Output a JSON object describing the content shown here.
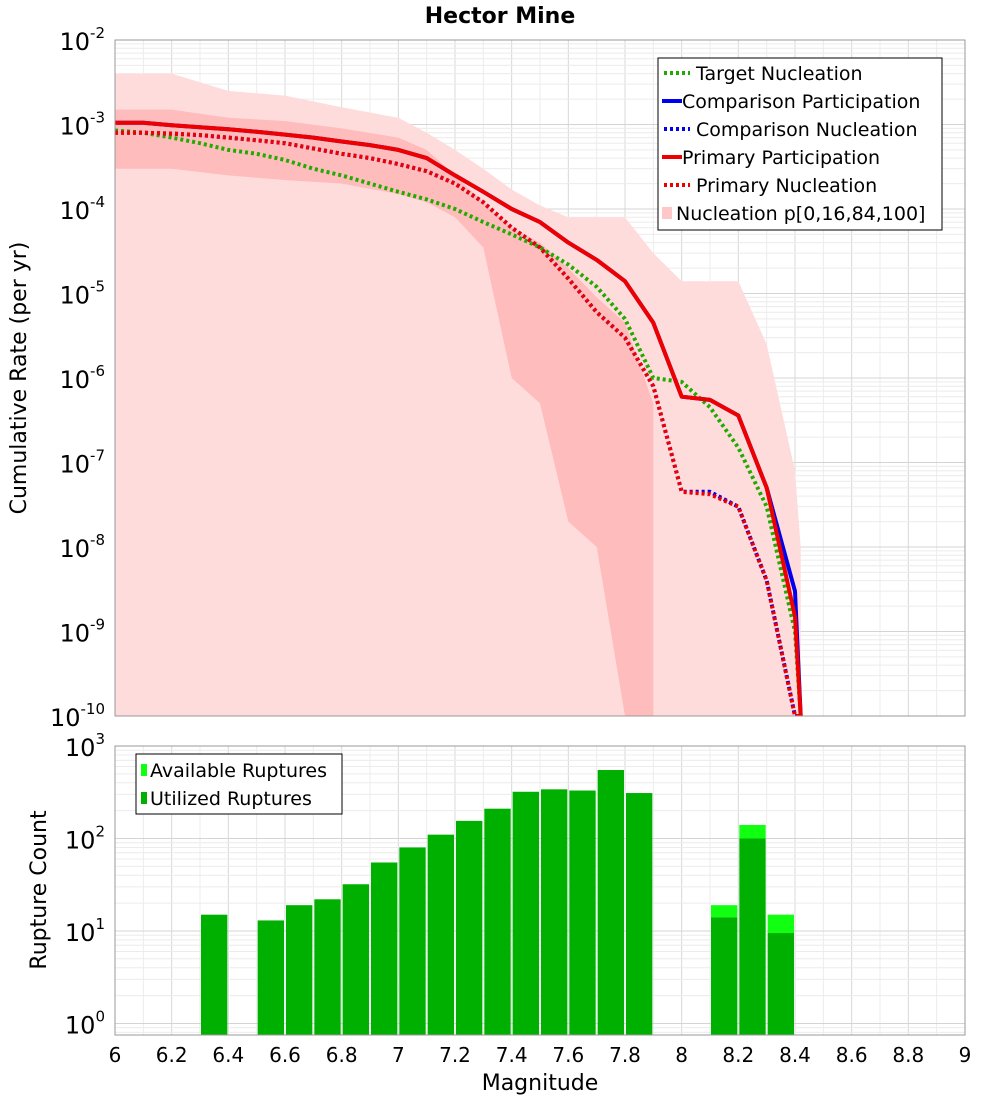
{
  "chart_data": [
    {
      "type": "line",
      "title": "Hector Mine",
      "xlabel": "",
      "ylabel": "Cumulative Rate (per yr)",
      "xlim": [
        6,
        9
      ],
      "ylim": [
        1e-10,
        0.01
      ],
      "yscale": "log",
      "ytick_labels": [
        {
          "value": 0.01,
          "base": "10",
          "exp": "-2"
        },
        {
          "value": 0.001,
          "base": "10",
          "exp": "-3"
        },
        {
          "value": 0.0001,
          "base": "10",
          "exp": "-4"
        },
        {
          "value": 1e-05,
          "base": "10",
          "exp": "-5"
        },
        {
          "value": 1e-06,
          "base": "10",
          "exp": "-6"
        },
        {
          "value": 1e-07,
          "base": "10",
          "exp": "-7"
        },
        {
          "value": 1e-08,
          "base": "10",
          "exp": "-8"
        },
        {
          "value": 1e-09,
          "base": "10",
          "exp": "-9"
        },
        {
          "value": 1e-10,
          "base": "10",
          "exp": "-10"
        }
      ],
      "bands": [
        {
          "name": "Nucleation p[0,100]",
          "color": "#ffdcdc",
          "x": [
            6.0,
            6.2,
            6.2,
            6.4,
            6.6,
            6.8,
            7.0,
            7.1,
            7.2,
            7.3,
            7.4,
            7.5,
            7.6,
            7.7,
            7.8,
            7.9,
            8.0,
            8.1,
            8.2,
            8.3,
            8.4,
            8.42
          ],
          "upper": [
            0.004,
            0.004,
            0.004,
            0.0025,
            0.0022,
            0.0016,
            0.0012,
            0.0008,
            0.0005,
            0.0003,
            0.00017,
            0.00011,
            8e-05,
            8e-05,
            8e-05,
            3e-05,
            1.4e-05,
            1.4e-05,
            1.4e-05,
            2.5e-06,
            8e-08,
            1e-08
          ],
          "lower": [
            1e-10,
            1e-10,
            1e-10,
            1e-10,
            1e-10,
            1e-10,
            1e-10,
            1e-10,
            1e-10,
            1e-10,
            1e-10,
            1e-10,
            1e-10,
            1e-10,
            1e-10,
            1e-10,
            1e-10,
            1e-10,
            1e-10,
            1e-10,
            1e-10,
            1e-10
          ]
        },
        {
          "name": "Nucleation p[16,84]",
          "color": "#ffbcbc",
          "x": [
            6.0,
            6.2,
            6.4,
            6.6,
            6.8,
            7.0,
            7.1,
            7.2,
            7.3,
            7.4,
            7.5,
            7.6,
            7.7,
            7.8,
            7.9
          ],
          "upper": [
            0.0015,
            0.0015,
            0.0012,
            0.0011,
            0.0009,
            0.0007,
            0.0005,
            0.00025,
            0.00012,
            6e-05,
            4e-05,
            2e-05,
            9e-06,
            4.5e-06,
            5e-07
          ],
          "lower": [
            0.0003,
            0.0003,
            0.00025,
            0.00022,
            0.0002,
            0.00015,
            0.00012,
            8e-05,
            3.5e-05,
            1e-06,
            5e-07,
            2e-08,
            1e-08,
            1e-10,
            1e-10
          ]
        }
      ],
      "series": [
        {
          "name": "Target Nucleation",
          "color": "#22aa00",
          "dash": true,
          "x": [
            6.0,
            6.1,
            6.2,
            6.3,
            6.4,
            6.5,
            6.6,
            6.7,
            6.8,
            6.9,
            7.0,
            7.1,
            7.2,
            7.3,
            7.4,
            7.5,
            7.6,
            7.7,
            7.8,
            7.9,
            8.0,
            8.1,
            8.2,
            8.3,
            8.4,
            8.42
          ],
          "values": [
            0.00085,
            0.0008,
            0.0007,
            0.0006,
            0.0005,
            0.00045,
            0.00038,
            0.0003,
            0.00025,
            0.0002,
            0.00016,
            0.00013,
            0.0001,
            7e-05,
            5e-05,
            3.5e-05,
            2.2e-05,
            1.2e-05,
            5e-06,
            1e-06,
            9e-07,
            4.5e-07,
            1.5e-07,
            3e-08,
            1e-09,
            1e-10
          ]
        },
        {
          "name": "Comparison Participation",
          "color": "#0000ee",
          "dash": false,
          "x": [
            6.0,
            6.1,
            6.2,
            6.3,
            6.4,
            6.5,
            6.6,
            6.7,
            6.8,
            6.9,
            7.0,
            7.1,
            7.2,
            7.3,
            7.4,
            7.5,
            7.6,
            7.7,
            7.8,
            7.9,
            8.0,
            8.1,
            8.2,
            8.3,
            8.4,
            8.42
          ],
          "values": [
            0.00105,
            0.00105,
            0.00098,
            0.00093,
            0.00088,
            0.00082,
            0.00076,
            0.0007,
            0.00063,
            0.00057,
            0.0005,
            0.0004,
            0.00025,
            0.00016,
            0.0001,
            7e-05,
            4e-05,
            2.5e-05,
            1.4e-05,
            4.5e-06,
            6e-07,
            5.5e-07,
            3.6e-07,
            5e-08,
            3e-09,
            1e-10
          ]
        },
        {
          "name": "Comparison Nucleation",
          "color": "#0000ee",
          "dash": true,
          "x": [
            6.0,
            6.1,
            6.2,
            6.3,
            6.4,
            6.5,
            6.6,
            6.7,
            6.8,
            6.9,
            7.0,
            7.1,
            7.2,
            7.3,
            7.4,
            7.5,
            7.6,
            7.7,
            7.8,
            7.9,
            8.0,
            8.1,
            8.2,
            8.3,
            8.4,
            8.42
          ],
          "values": [
            0.0008,
            0.0008,
            0.00078,
            0.00075,
            0.0007,
            0.00065,
            0.0006,
            0.00052,
            0.00045,
            0.0004,
            0.00034,
            0.00028,
            0.0002,
            0.00012,
            6e-05,
            3.5e-05,
            1.5e-05,
            6e-06,
            3e-06,
            8e-07,
            4.5e-08,
            4.5e-08,
            3e-08,
            4e-09,
            1e-10,
            1e-10
          ]
        },
        {
          "name": "Primary Participation",
          "color": "#ee0000",
          "dash": false,
          "x": [
            6.0,
            6.1,
            6.2,
            6.3,
            6.4,
            6.5,
            6.6,
            6.7,
            6.8,
            6.9,
            7.0,
            7.1,
            7.2,
            7.3,
            7.4,
            7.5,
            7.6,
            7.7,
            7.8,
            7.9,
            8.0,
            8.1,
            8.2,
            8.3,
            8.4,
            8.42
          ],
          "values": [
            0.00105,
            0.00105,
            0.00098,
            0.00093,
            0.00088,
            0.00082,
            0.00076,
            0.0007,
            0.00063,
            0.00057,
            0.0005,
            0.0004,
            0.00025,
            0.00016,
            0.0001,
            7e-05,
            4e-05,
            2.5e-05,
            1.4e-05,
            4.5e-06,
            6e-07,
            5.5e-07,
            3.6e-07,
            5e-08,
            1.5e-09,
            1e-10
          ]
        },
        {
          "name": "Primary Nucleation",
          "color": "#ee0000",
          "dash": true,
          "x": [
            6.0,
            6.1,
            6.2,
            6.3,
            6.4,
            6.5,
            6.6,
            6.7,
            6.8,
            6.9,
            7.0,
            7.1,
            7.2,
            7.3,
            7.4,
            7.5,
            7.6,
            7.7,
            7.8,
            7.9,
            8.0,
            8.1,
            8.2,
            8.3,
            8.4,
            8.42
          ],
          "values": [
            0.0008,
            0.0008,
            0.00078,
            0.00075,
            0.0007,
            0.00065,
            0.0006,
            0.00052,
            0.00045,
            0.0004,
            0.00034,
            0.00028,
            0.0002,
            0.00012,
            6e-05,
            3.5e-05,
            1.5e-05,
            6e-06,
            3e-06,
            8e-07,
            4.5e-08,
            4.2e-08,
            3e-08,
            4e-09,
            1e-10,
            1e-10
          ]
        }
      ],
      "legend": {
        "placement": "top-right",
        "entries": [
          {
            "label": "Target Nucleation",
            "color": "#22aa00",
            "style": "dotted"
          },
          {
            "label": "Comparison Participation",
            "color": "#0000ee",
            "style": "solid"
          },
          {
            "label": "Comparison Nucleation",
            "color": "#0000ee",
            "style": "dotted"
          },
          {
            "label": "Primary Participation",
            "color": "#ee0000",
            "style": "solid"
          },
          {
            "label": "Primary Nucleation",
            "color": "#ee0000",
            "style": "dotted"
          },
          {
            "label": "Nucleation p[0,16,84,100]",
            "color": "#ffc8c8",
            "style": "box"
          }
        ]
      }
    },
    {
      "type": "bar",
      "xlabel": "Magnitude",
      "ylabel": "Rupture Count",
      "xlim": [
        6,
        9
      ],
      "ylim": [
        0.75,
        1000
      ],
      "yscale": "log",
      "xtick_labels": [
        "6",
        "6.2",
        "6.4",
        "6.6",
        "6.8",
        "7",
        "7.2",
        "7.4",
        "7.6",
        "7.8",
        "8",
        "8.2",
        "8.4",
        "8.6",
        "8.8",
        "9"
      ],
      "ytick_labels": [
        {
          "value": 1,
          "base": "10",
          "exp": "0"
        },
        {
          "value": 10,
          "base": "10",
          "exp": "1"
        },
        {
          "value": 100,
          "base": "10",
          "exp": "2"
        },
        {
          "value": 1000,
          "base": "10",
          "exp": "3"
        }
      ],
      "bin_width": 0.1,
      "bin_centers": [
        6.35,
        6.55,
        6.65,
        6.75,
        6.85,
        6.95,
        7.05,
        7.15,
        7.25,
        7.35,
        7.45,
        7.55,
        7.65,
        7.75,
        7.85,
        8.15,
        8.25,
        8.35
      ],
      "series": [
        {
          "name": "Available Ruptures",
          "color": "#11ff11",
          "values": [
            15,
            13,
            19,
            22,
            32,
            55,
            80,
            110,
            155,
            210,
            320,
            340,
            330,
            550,
            310,
            19,
            140,
            15
          ]
        },
        {
          "name": "Utilized Ruptures",
          "color": "#00b000",
          "values": [
            15,
            13,
            19,
            22,
            32,
            55,
            80,
            110,
            155,
            210,
            320,
            340,
            330,
            550,
            310,
            14,
            100,
            9.5
          ]
        }
      ],
      "legend": {
        "placement": "top-left",
        "entries": [
          {
            "label": "Available Ruptures",
            "color": "#11ff11"
          },
          {
            "label": "Utilized Ruptures",
            "color": "#00b000"
          }
        ]
      }
    }
  ]
}
